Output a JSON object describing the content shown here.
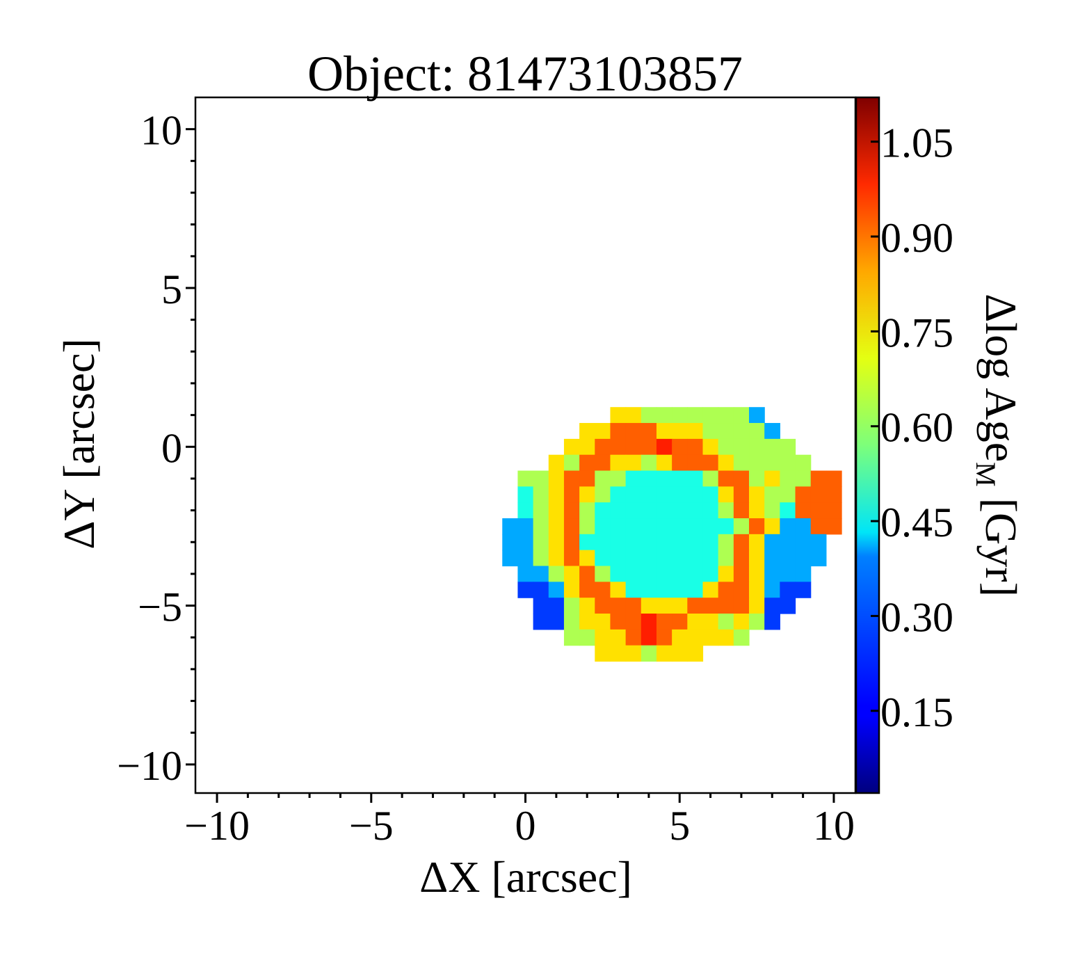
{
  "chart_data": {
    "type": "heatmap",
    "title": "Object: 81473103857",
    "xlabel": "ΔX [arcsec]",
    "ylabel": "ΔY [arcsec]",
    "colorbar_label_main": "Δlog Age",
    "colorbar_label_sub": "M",
    "colorbar_label_unit": " [Gyr]",
    "xlim": [
      -10.7,
      10.7
    ],
    "ylim": [
      -10.9,
      11.0
    ],
    "xticks": [
      -10,
      -5,
      0,
      5,
      10
    ],
    "yticks": [
      -10,
      -5,
      0,
      5,
      10
    ],
    "xtick_labels": [
      "−10",
      "−5",
      "0",
      "5",
      "10"
    ],
    "ytick_labels": [
      "−10",
      "−5",
      "0",
      "5",
      "10"
    ],
    "colormap": "jet",
    "clim": [
      0.02,
      1.12
    ],
    "colorbar_ticks": [
      0.15,
      0.3,
      0.45,
      0.6,
      0.75,
      0.9,
      1.05
    ],
    "colorbar_tick_labels": [
      "0.15",
      "0.30",
      "0.45",
      "0.60",
      "0.75",
      "0.90",
      "1.05"
    ],
    "grid": false,
    "pixel_size_arcsec": 0.5,
    "map_x_start": -2.75,
    "map_y_top": 2.25,
    "map_rows": [
      "................................",
      "................................",
      "...........YYGGGGGGGB...........",
      ".........YYOOOYYYGGGGB..........",
      "........YYOOOOROOYGGGGG.........",
      ".......YGOOYYGYOOOYGGGGG........",
      ".....GGYOOGGCCCCCGOOGYGGOO......",
      ".....CGYOYGCCCCCCCYOYGGOOO......",
      ".....CGYOGCCCCCCCCGOYGCOOO......",
      "....BBGYOGCCCCCCCCCGOYBBOO......",
      "....BBGYOCCCCCCCCCGOYBBBB.......",
      "....BBGYOYCCCCCCCCGOYBBBB.......",
      ".....BBGYOGCCCCCCCYOYBBB........",
      ".....KKBYOOYCCCCCYOOYBKK........",
      "......KKGYOOOYYYOOOOYKK.........",
      "......KKGYYOOROOYYGYGK..........",
      "........GGYYOROYYYYG............",
      "..........YYYGYYY...............",
      "................................"
    ],
    "map_legend": {
      "K": 0.22,
      "B": 0.34,
      "C": 0.46,
      "G": 0.62,
      "Y": 0.74,
      "O": 0.88,
      "R": 0.95
    }
  }
}
